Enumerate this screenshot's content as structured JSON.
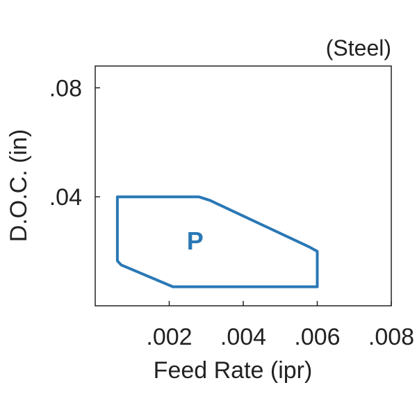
{
  "chart_data": {
    "type": "area",
    "material_label": "(Steel)",
    "xlabel": "Feed Rate (ipr)",
    "ylabel": "D.O.C. (in)",
    "xlim": [
      0,
      0.008
    ],
    "ylim": [
      0,
      0.088
    ],
    "x_ticks": [
      {
        "value": 0.002,
        "label": ".002"
      },
      {
        "value": 0.004,
        "label": ".004"
      },
      {
        "value": 0.006,
        "label": ".006"
      },
      {
        "value": 0.008,
        "label": ".008"
      }
    ],
    "y_ticks": [
      {
        "value": 0.04,
        "label": ".04"
      },
      {
        "value": 0.08,
        "label": ".08"
      }
    ],
    "grid": false,
    "series": [
      {
        "name": "P",
        "color": "#2a78b5",
        "outline": [
          [
            0.0006,
            0.04
          ],
          [
            0.0028,
            0.04
          ],
          [
            0.0031,
            0.0387
          ],
          [
            0.0058,
            0.0215
          ],
          [
            0.006,
            0.02
          ],
          [
            0.006,
            0.007
          ],
          [
            0.0021,
            0.007
          ],
          [
            0.0007,
            0.015
          ],
          [
            0.0006,
            0.0165
          ]
        ],
        "label_at": [
          0.0027,
          0.024
        ]
      }
    ]
  }
}
